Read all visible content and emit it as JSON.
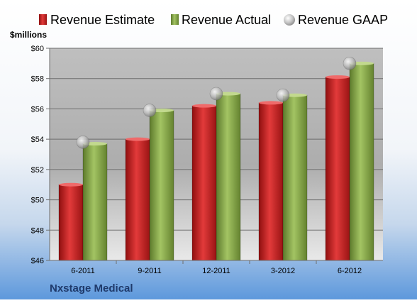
{
  "chart_data": {
    "type": "bar",
    "title": "",
    "company": "Nxstage Medical",
    "unit_label": "$millions",
    "categories": [
      "6-2011",
      "9-2011",
      "12-2011",
      "3-2012",
      "6-2012"
    ],
    "series": [
      {
        "name": "Revenue Estimate",
        "kind": "bar",
        "color": "#cc1f1f",
        "values": [
          51.0,
          54.0,
          56.2,
          56.4,
          58.1
        ]
      },
      {
        "name": "Revenue Actual",
        "kind": "bar",
        "color": "#8cb04a",
        "values": [
          53.7,
          55.9,
          57.0,
          56.9,
          59.0
        ]
      },
      {
        "name": "Revenue GAAP",
        "kind": "marker",
        "color": "#b8b8b8",
        "values": [
          53.8,
          55.9,
          57.0,
          56.9,
          59.0
        ]
      }
    ],
    "ylim": [
      46,
      60
    ],
    "yticks": [
      "$46",
      "$48",
      "$50",
      "$52",
      "$54",
      "$56",
      "$58",
      "$60"
    ],
    "ytick_values": [
      46,
      48,
      50,
      52,
      54,
      56,
      58,
      60
    ],
    "grid": true,
    "legend_position": "top"
  }
}
